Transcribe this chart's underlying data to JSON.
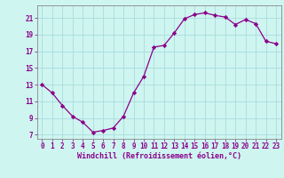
{
  "x": [
    0,
    1,
    2,
    3,
    4,
    5,
    6,
    7,
    8,
    9,
    10,
    11,
    12,
    13,
    14,
    15,
    16,
    17,
    18,
    19,
    20,
    21,
    22,
    23
  ],
  "y": [
    13.0,
    12.0,
    10.5,
    9.2,
    8.5,
    7.3,
    7.5,
    7.8,
    9.2,
    12.0,
    14.0,
    17.5,
    17.7,
    19.2,
    20.9,
    21.4,
    21.6,
    21.3,
    21.1,
    20.2,
    20.8,
    20.3,
    18.2,
    17.9
  ],
  "line_color": "#8B008B",
  "marker": "D",
  "marker_size": 2.2,
  "bg_color": "#cef5f0",
  "grid_color": "#aadddd",
  "xlabel": "Windchill (Refroidissement éolien,°C)",
  "xlabel_fontsize": 6.0,
  "tick_fontsize": 5.5,
  "ylim": [
    6.5,
    22.5
  ],
  "yticks": [
    7,
    9,
    11,
    13,
    15,
    17,
    19,
    21
  ],
  "xlim": [
    -0.5,
    23.5
  ],
  "xticks": [
    0,
    1,
    2,
    3,
    4,
    5,
    6,
    7,
    8,
    9,
    10,
    11,
    12,
    13,
    14,
    15,
    16,
    17,
    18,
    19,
    20,
    21,
    22,
    23
  ]
}
